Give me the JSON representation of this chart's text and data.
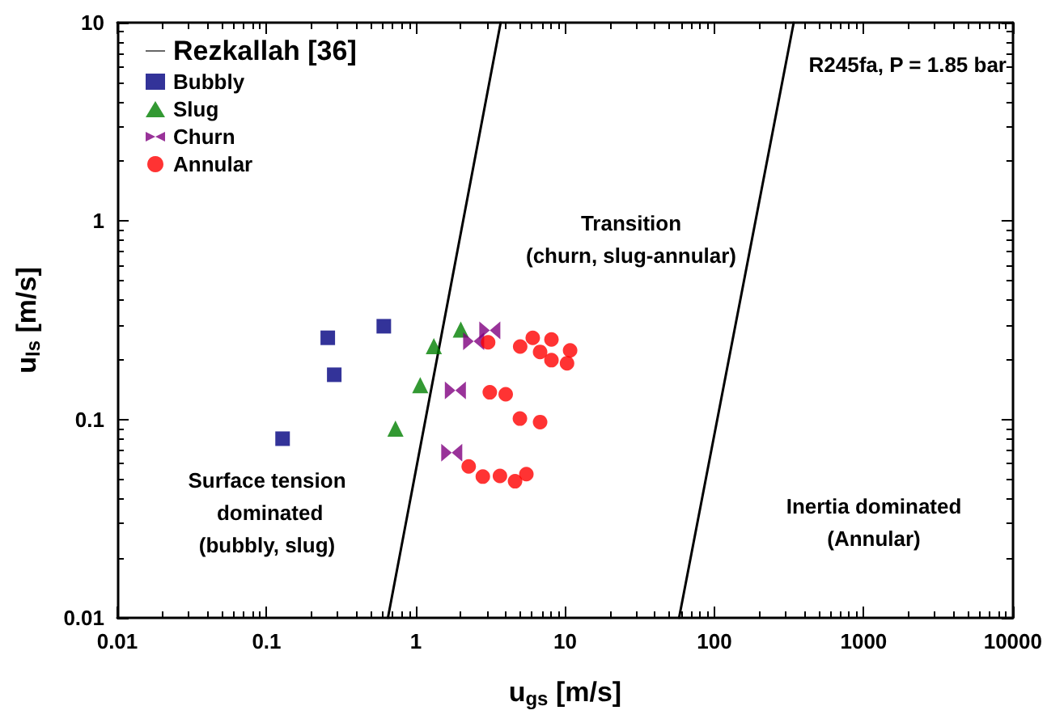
{
  "chart_data": {
    "type": "scatter",
    "xlabel": "u$_{gs}$ [m/s]",
    "ylabel": "u$_{ls}$ [m/s]",
    "log": "xy",
    "grid": false,
    "legend": "top left",
    "xlim": [
      0.01,
      10000
    ],
    "xticks": [
      0.01,
      0.1,
      1,
      10,
      100,
      1000,
      10000
    ],
    "ylim": [
      0.01,
      10
    ],
    "yticks": [
      0.01,
      0.1,
      1,
      10
    ],
    "series": [
      {
        "name": "Rezkallah [36]",
        "type": "line",
        "color": "#000000",
        "marker": "none",
        "line_style": "solid",
        "x": [
          0.65,
          3.7,
          null,
          58,
          340
        ],
        "values": [
          0.01,
          10,
          null,
          0.01,
          10
        ]
      },
      {
        "name": "Bubbly",
        "color": "#000080",
        "marker": "square",
        "x": [
          0.257,
          0.61,
          0.284,
          0.128
        ],
        "values": [
          0.258,
          0.295,
          0.168,
          0.08
        ]
      },
      {
        "name": "Slug",
        "color": "#008000",
        "marker": "triangle",
        "x": [
          0.73,
          1.07,
          1.32,
          2.0
        ],
        "values": [
          0.09,
          0.149,
          0.234,
          0.284
        ]
      },
      {
        "name": "Churn",
        "color": "#800080",
        "x": [
          3.13,
          2.44,
          1.84,
          1.74
        ],
        "values": [
          0.281,
          0.248,
          0.14,
          0.068
        ]
      },
      {
        "name": "Annular",
        "color": "#ff0000",
        "marker": "circle",
        "x": [
          3.05,
          5.0,
          6.07,
          8.1,
          6.8,
          10.8,
          8.1,
          10.3,
          3.13,
          4.0,
          4.98,
          6.8,
          2.26,
          2.81,
          3.66,
          4.62,
          5.5
        ],
        "values": [
          0.245,
          0.233,
          0.258,
          0.253,
          0.219,
          0.223,
          0.199,
          0.192,
          0.137,
          0.134,
          0.101,
          0.097,
          0.058,
          0.0515,
          0.0519,
          0.0488,
          0.053
        ]
      }
    ],
    "annotations": [
      "Surface tension\n dominated\n(bubbly, slug)",
      "Transition\n(churn, slug-annular)",
      "Inertia dominated\n(Annular)",
      "R245fa, P = 1.85 bar"
    ]
  }
}
